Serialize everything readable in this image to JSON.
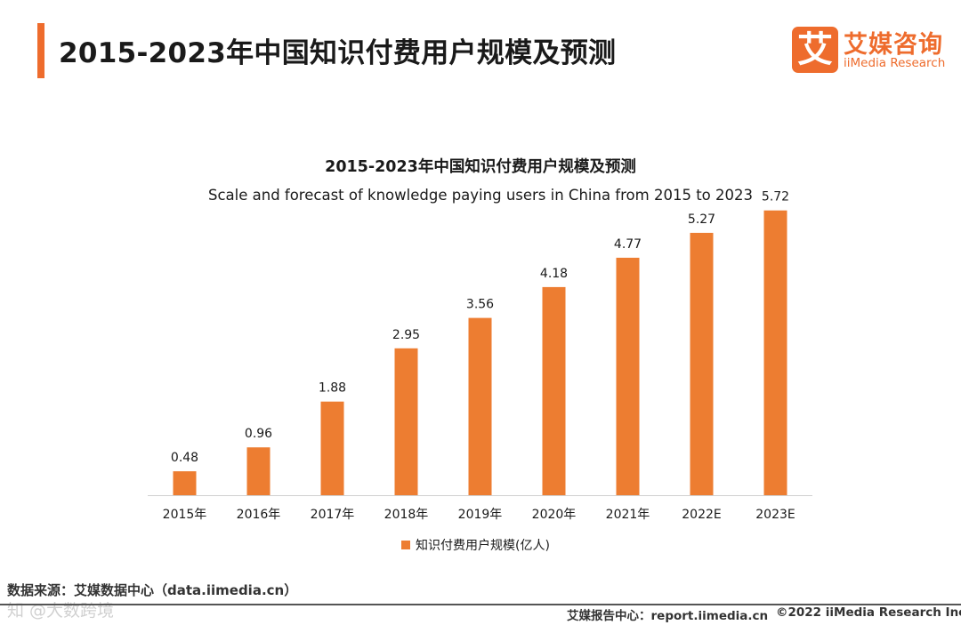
{
  "page": {
    "title": "2015-2023年中国知识付费用户规模及预测"
  },
  "logo": {
    "mark": "艾",
    "name_cn": "艾媒咨询",
    "name_en": "iiMedia Research"
  },
  "chart_data": {
    "type": "bar",
    "title": "2015-2023年中国知识付费用户规模及预测",
    "subtitle": "Scale and forecast of knowledge paying users in China from 2015 to 2023",
    "categories": [
      "2015年",
      "2016年",
      "2017年",
      "2018年",
      "2019年",
      "2020年",
      "2021年",
      "2022E",
      "2023E"
    ],
    "series": [
      {
        "name": "知识付费用户规模(亿人)",
        "values": [
          0.48,
          0.96,
          1.88,
          2.95,
          3.56,
          4.18,
          4.77,
          5.27,
          5.72
        ],
        "color": "#ed7d31"
      }
    ],
    "value_labels": [
      "0.48",
      "0.96",
      "1.88",
      "2.95",
      "3.56",
      "4.18",
      "4.77",
      "5.27",
      "5.72"
    ],
    "ylim": [
      0,
      6
    ],
    "grid": false,
    "legend_position": "bottom",
    "y_axis_visible": false
  },
  "footer": {
    "source": "数据来源：艾媒数据中心（data.iimedia.cn）",
    "report": "艾媒报告中心：report.iimedia.cn",
    "copyright": "©2022  iiMedia Research  Inc",
    "watermark": "知 @大数跨境"
  },
  "colors": {
    "accent": "#ee6c2d",
    "bar": "#ed7d31"
  }
}
